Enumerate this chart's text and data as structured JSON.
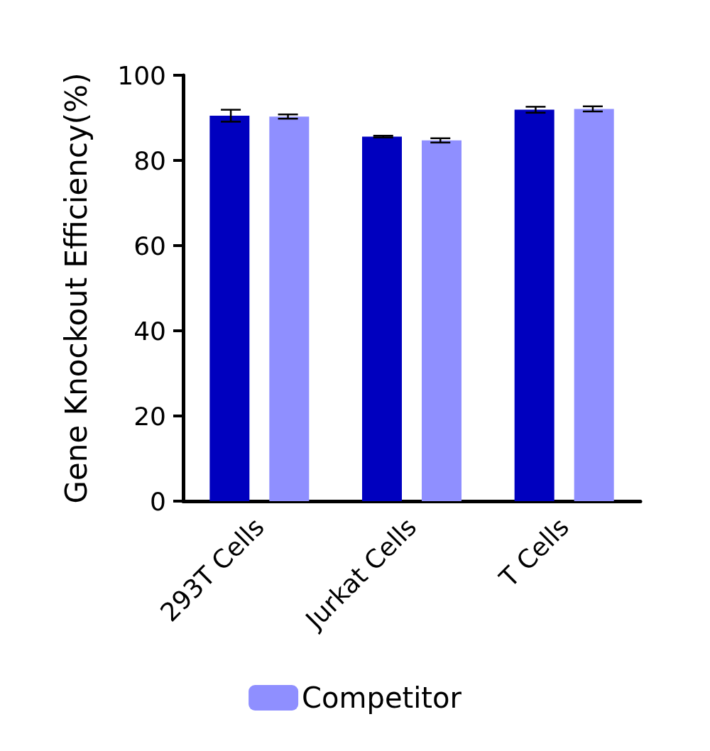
{
  "chart_data": {
    "type": "bar",
    "ylabel": "Gene Knockout Efficiency(%)",
    "categories": [
      "293T Cells",
      "Jurkat Cells",
      "T Cells"
    ],
    "series": [
      {
        "color": "#0000bf",
        "values": [
          90.5,
          85.6,
          91.9
        ],
        "errors": [
          1.4,
          0.2,
          0.7
        ]
      },
      {
        "name": "Competitor",
        "color": "#8f8fff",
        "values": [
          90.3,
          84.7,
          92.1
        ],
        "errors": [
          0.5,
          0.5,
          0.6
        ]
      }
    ],
    "ylim": [
      0,
      100
    ],
    "yticks": [
      0,
      20,
      40,
      60,
      80,
      100
    ],
    "grid": false,
    "legend": "bottom"
  }
}
